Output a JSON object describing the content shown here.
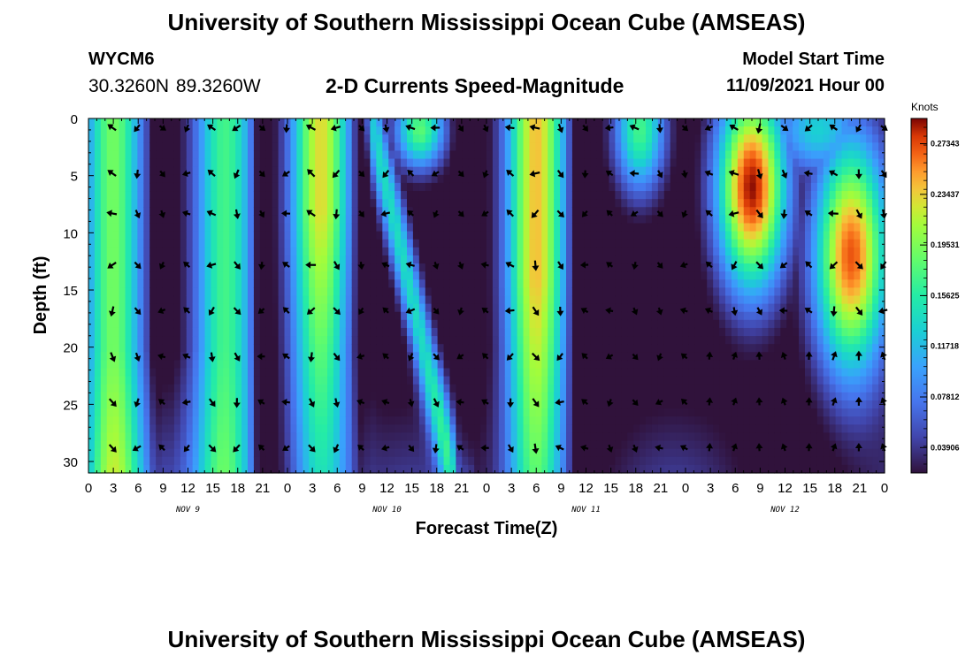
{
  "header": {
    "title": "University of Southern Mississippi Ocean Cube (AMSEAS)",
    "station": "WYCM6",
    "latlon": "30.3260N  89.3260W",
    "plot_title": "2-D Currents Speed-Magnitude",
    "model_start_label": "Model Start Time",
    "model_start_value": "11/09/2021 Hour 00"
  },
  "footer": {
    "title": "University of Southern Mississippi Ocean Cube (AMSEAS)"
  },
  "chart_data": {
    "type": "heatmap",
    "xlabel": "Forecast Time(Z)",
    "ylabel": "Depth (ft)",
    "x_range_hours": [
      0,
      96
    ],
    "y_range_ft": [
      0,
      31
    ],
    "x_tick_labels": [
      "0",
      "3",
      "6",
      "9",
      "12",
      "15",
      "18",
      "21",
      "0",
      "3",
      "6",
      "9",
      "12",
      "15",
      "18",
      "21",
      "0",
      "3",
      "6",
      "9",
      "12",
      "15",
      "18",
      "21",
      "0",
      "3",
      "6",
      "9",
      "12",
      "15",
      "18",
      "21",
      "0"
    ],
    "y_ticks": [
      0,
      5,
      10,
      15,
      20,
      25,
      30
    ],
    "y_tick_labels": [
      "0",
      "5",
      "10",
      "15",
      "20",
      "25",
      "30"
    ],
    "day_labels": [
      {
        "label": "NOV 9",
        "hour": 12
      },
      {
        "label": "NOV 10",
        "hour": 36
      },
      {
        "label": "NOV 11",
        "hour": 60
      },
      {
        "label": "NOV 12",
        "hour": 84
      }
    ],
    "colorbar": {
      "label": "Knots",
      "min": 0.0195,
      "max": 0.2929,
      "tick_values": [
        0.03906,
        0.07812,
        0.11718,
        0.15625,
        0.19531,
        0.23437,
        0.27343
      ],
      "tick_labels": [
        "0.03906",
        "0.07812",
        "0.11718",
        "0.15625",
        "0.19531",
        "0.23437",
        "0.27343"
      ]
    },
    "arrow_depths_ft": [
      0.5,
      4.5,
      8,
      12.5,
      16.5,
      20.5,
      24.5,
      28.5
    ],
    "arrow_hours": [
      3,
      6,
      9,
      12,
      15,
      18,
      21,
      24,
      27,
      30,
      33,
      36,
      39,
      42,
      45,
      48,
      51,
      54,
      57,
      60,
      63,
      66,
      69,
      72,
      75,
      78,
      81,
      84,
      87,
      90,
      93,
      96
    ],
    "speed_model": {
      "description": "Estimated speed magnitude (knots) as a function of forecast hour and depth",
      "peaks": [
        {
          "hour": 3.0,
          "depth_ft": 15,
          "speed": 0.25
        },
        {
          "hour": 16.5,
          "depth_ft": 12,
          "speed": 0.23
        },
        {
          "hour": 28.0,
          "depth_ft": 6,
          "speed": 0.26
        },
        {
          "hour": 54.0,
          "depth_ft": 10,
          "speed": 0.25
        },
        {
          "hour": 80.0,
          "depth_ft": 3,
          "speed": 0.29
        },
        {
          "hour": 92.0,
          "depth_ft": 12,
          "speed": 0.25
        }
      ],
      "minima_hours": [
        8.3,
        20.8,
        33.0,
        45.0,
        59.0,
        72.0
      ]
    }
  }
}
